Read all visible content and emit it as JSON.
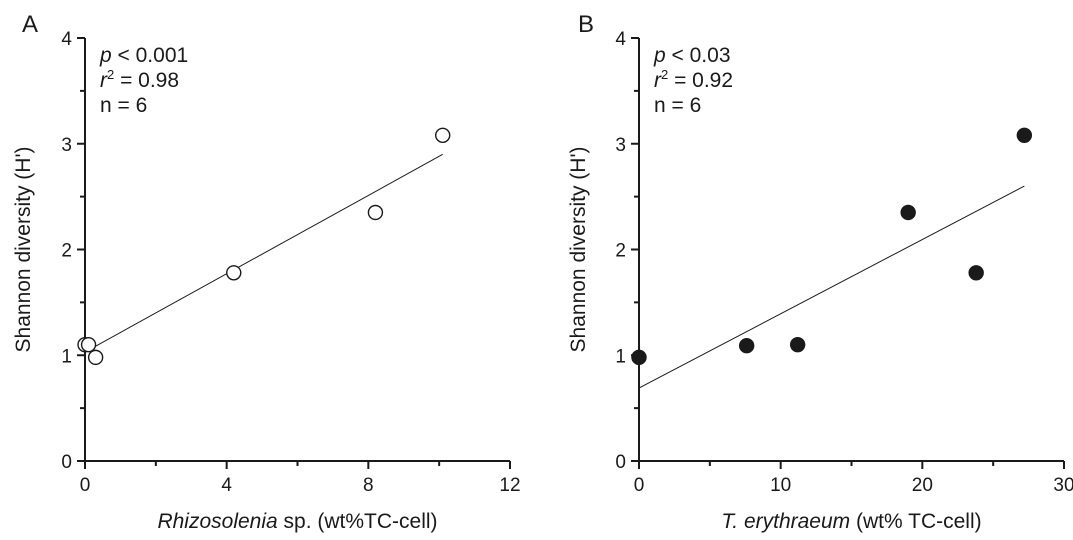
{
  "chart_data": [
    {
      "type": "scatter",
      "panel_label": "A",
      "xlabel_italic": "Rhizosolenia",
      "xlabel_rest": " sp. (wt%TC-cell)",
      "ylabel": "Shannon diversity (H')",
      "xlim": [
        0,
        12
      ],
      "ylim": [
        0,
        4
      ],
      "x_ticks": [
        0,
        4,
        8,
        12
      ],
      "x_minor_step": 2,
      "y_ticks": [
        0,
        1,
        2,
        3,
        4
      ],
      "y_minor_step": 0.5,
      "marker": "open",
      "points": [
        {
          "x": 0.0,
          "y": 1.1
        },
        {
          "x": 0.1,
          "y": 1.1
        },
        {
          "x": 0.3,
          "y": 0.98
        },
        {
          "x": 4.2,
          "y": 1.78
        },
        {
          "x": 8.2,
          "y": 2.35
        },
        {
          "x": 10.1,
          "y": 3.08
        }
      ],
      "fit": {
        "x": [
          0.0,
          10.1
        ],
        "y": [
          1.03,
          2.9
        ]
      },
      "stats": {
        "p_var": "p",
        "p_rest": " < 0.001",
        "r_var": "r",
        "r_sup": "2",
        "r_rest": " = 0.98",
        "n": "n = 6"
      }
    },
    {
      "type": "scatter",
      "panel_label": "B",
      "xlabel_italic": "T. erythraeum",
      "xlabel_rest": " (wt% TC-cell)",
      "ylabel": "Shannon diversity (H')",
      "xlim": [
        0,
        30
      ],
      "ylim": [
        0,
        4
      ],
      "x_ticks": [
        0,
        10,
        20,
        30
      ],
      "x_minor_step": 5,
      "y_ticks": [
        0,
        1,
        2,
        3,
        4
      ],
      "y_minor_step": 0.5,
      "marker": "filled",
      "points": [
        {
          "x": 0.0,
          "y": 0.98
        },
        {
          "x": 7.6,
          "y": 1.09
        },
        {
          "x": 11.2,
          "y": 1.1
        },
        {
          "x": 19.0,
          "y": 2.35
        },
        {
          "x": 23.8,
          "y": 1.78
        },
        {
          "x": 27.2,
          "y": 3.08
        }
      ],
      "fit": {
        "x": [
          0.0,
          27.2
        ],
        "y": [
          0.69,
          2.6
        ]
      },
      "stats": {
        "p_var": "p",
        "p_rest": " < 0.03",
        "r_var": "r",
        "r_sup": "2",
        "r_rest": " = 0.92",
        "n": "n = 6"
      }
    }
  ]
}
